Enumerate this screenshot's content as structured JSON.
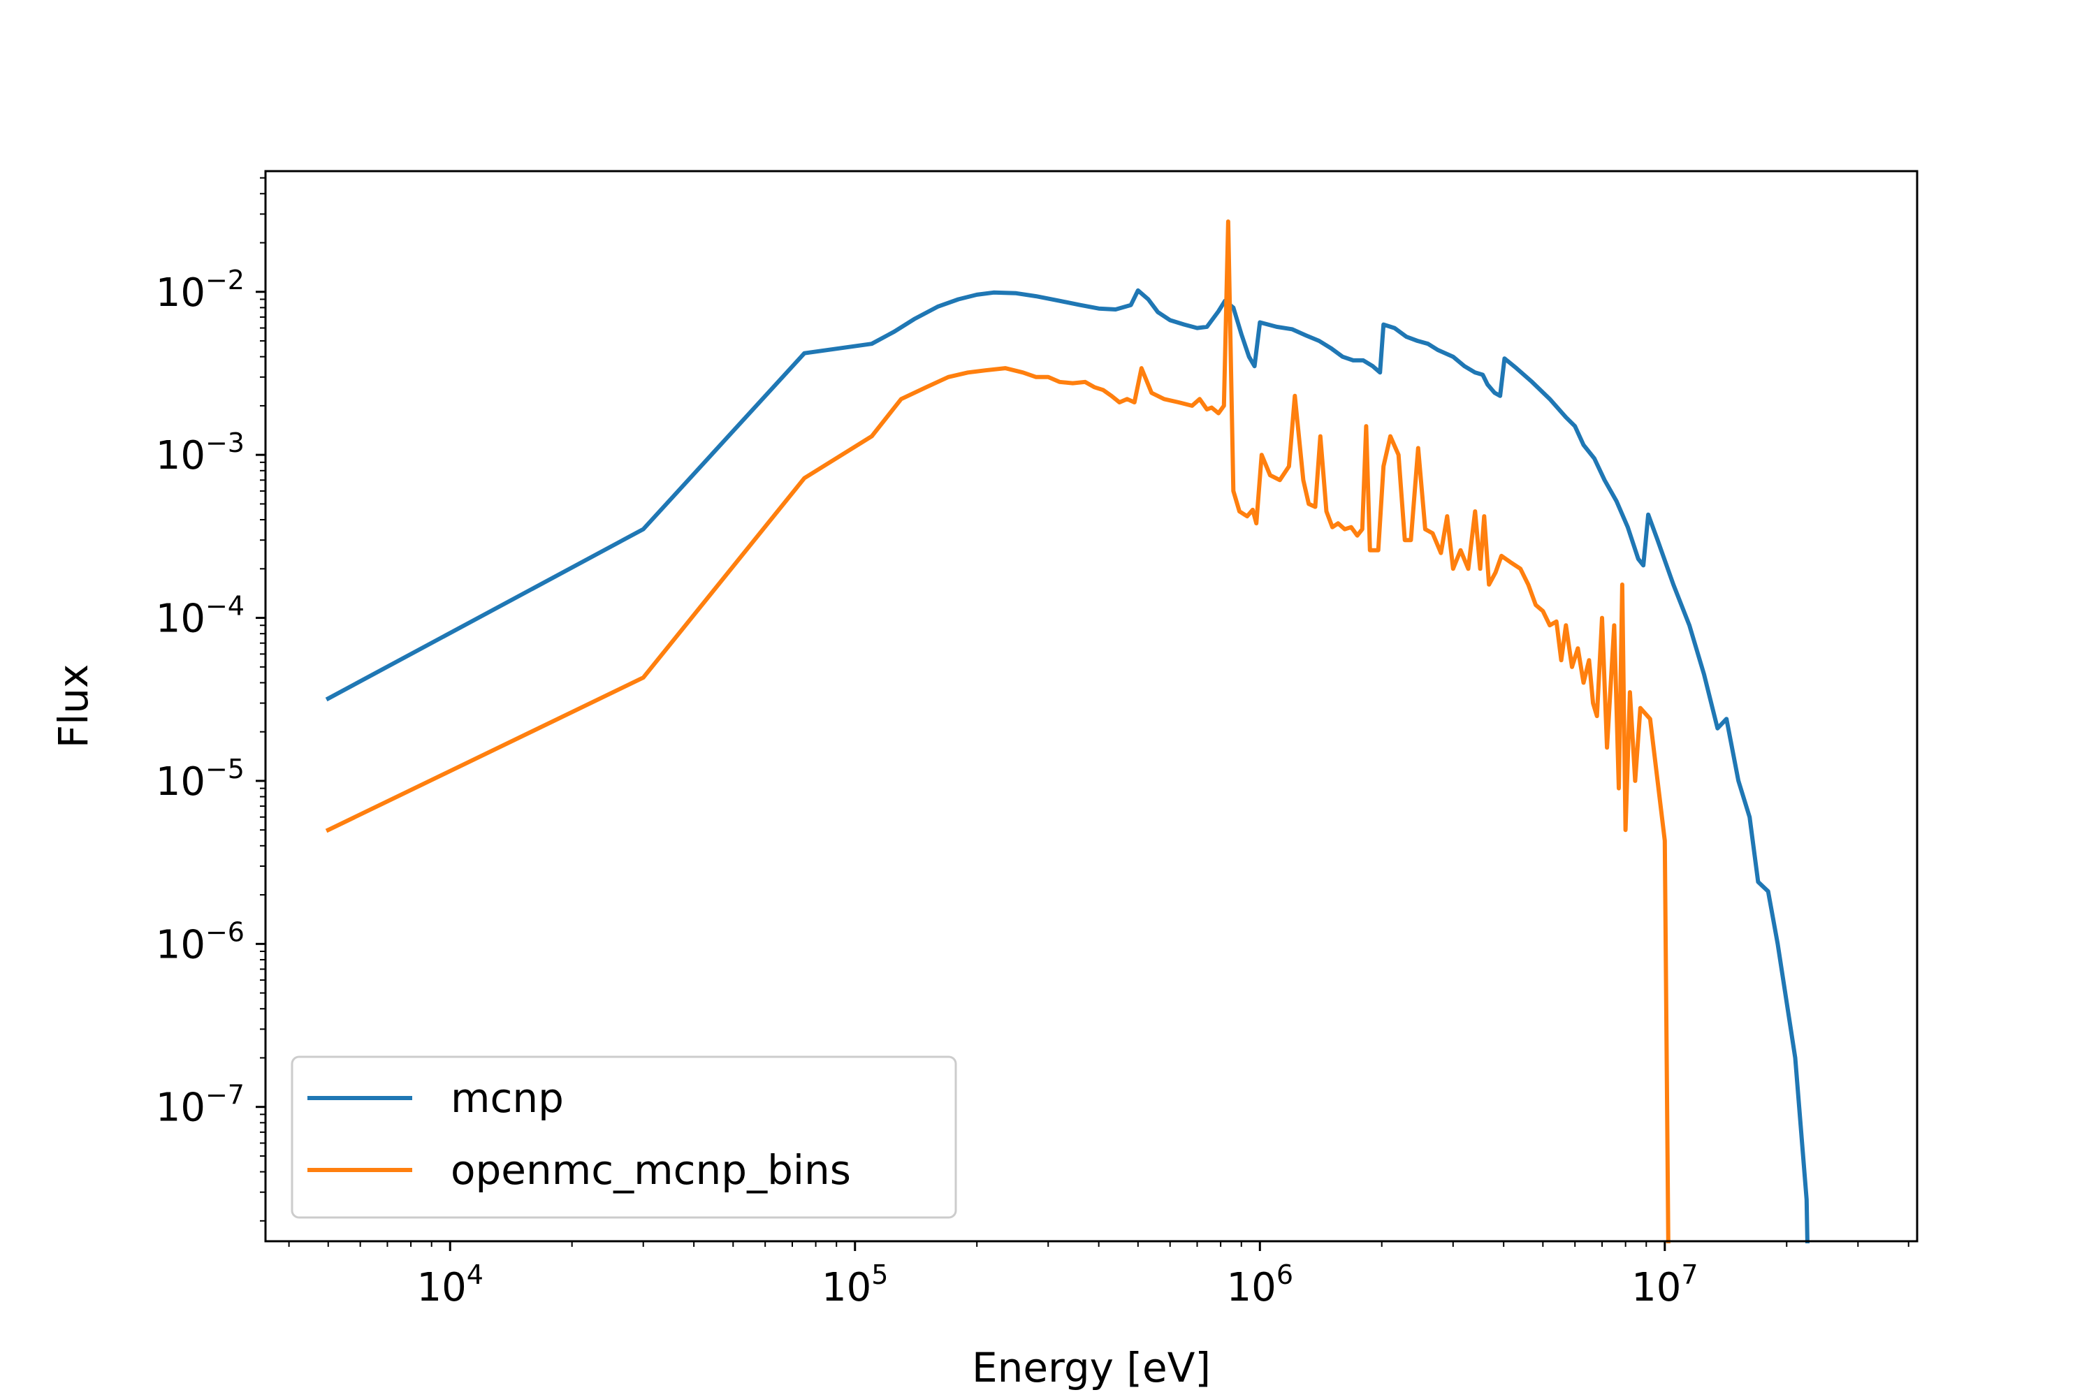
{
  "chart_data": {
    "type": "line",
    "xlabel": "Energy [eV]",
    "ylabel": "Flux",
    "xscale": "log",
    "yscale": "log",
    "xlim": [
      3500,
      42000000
    ],
    "ylim": [
      1.5e-08,
      0.055
    ],
    "grid": false,
    "legend_position": "lower-left",
    "x_ticks": [
      {
        "value": 10000,
        "base": "10",
        "exp": "4"
      },
      {
        "value": 100000,
        "base": "10",
        "exp": "5"
      },
      {
        "value": 1000000,
        "base": "10",
        "exp": "6"
      },
      {
        "value": 10000000,
        "base": "10",
        "exp": "7"
      }
    ],
    "y_ticks": [
      {
        "value": 1e-07,
        "base": "10",
        "exp": "−7"
      },
      {
        "value": 1e-06,
        "base": "10",
        "exp": "−6"
      },
      {
        "value": 1e-05,
        "base": "10",
        "exp": "−5"
      },
      {
        "value": 0.0001,
        "base": "10",
        "exp": "−4"
      },
      {
        "value": 0.001,
        "base": "10",
        "exp": "−3"
      },
      {
        "value": 0.01,
        "base": "10",
        "exp": "−2"
      }
    ],
    "series": [
      {
        "name": "mcnp",
        "color": "#1f77b4",
        "points": [
          [
            5000,
            3.2e-05
          ],
          [
            30000,
            0.00035
          ],
          [
            75000,
            0.0042
          ],
          [
            110000,
            0.0048
          ],
          [
            125000,
            0.0057
          ],
          [
            140000,
            0.0068
          ],
          [
            160000,
            0.0081
          ],
          [
            180000,
            0.009
          ],
          [
            200000,
            0.0096
          ],
          [
            220000,
            0.0099
          ],
          [
            250000,
            0.0098
          ],
          [
            280000,
            0.0094
          ],
          [
            320000,
            0.0088
          ],
          [
            360000,
            0.0083
          ],
          [
            400000,
            0.0079
          ],
          [
            440000,
            0.0078
          ],
          [
            480000,
            0.0083
          ],
          [
            500000,
            0.0102
          ],
          [
            530000,
            0.009
          ],
          [
            560000,
            0.0075
          ],
          [
            600000,
            0.0067
          ],
          [
            650000,
            0.0063
          ],
          [
            700000,
            0.006
          ],
          [
            740000,
            0.0061
          ],
          [
            790000,
            0.0076
          ],
          [
            820000,
            0.0088
          ],
          [
            860000,
            0.008
          ],
          [
            900000,
            0.0055
          ],
          [
            940000,
            0.004
          ],
          [
            970000,
            0.0035
          ],
          [
            1000000,
            0.0065
          ],
          [
            1100000,
            0.0061
          ],
          [
            1200000,
            0.0059
          ],
          [
            1300000,
            0.0054
          ],
          [
            1400000,
            0.005
          ],
          [
            1500000,
            0.0045
          ],
          [
            1600000,
            0.004
          ],
          [
            1700000,
            0.0038
          ],
          [
            1800000,
            0.0038
          ],
          [
            1900000,
            0.0035
          ],
          [
            1980000,
            0.0032
          ],
          [
            2020000,
            0.0063
          ],
          [
            2150000,
            0.006
          ],
          [
            2300000,
            0.0053
          ],
          [
            2450000,
            0.005
          ],
          [
            2600000,
            0.0048
          ],
          [
            2750000,
            0.0044
          ],
          [
            3000000,
            0.004
          ],
          [
            3200000,
            0.0035
          ],
          [
            3400000,
            0.0032
          ],
          [
            3550000,
            0.0031
          ],
          [
            3650000,
            0.0027
          ],
          [
            3800000,
            0.0024
          ],
          [
            3920000,
            0.0023
          ],
          [
            4020000,
            0.0039
          ],
          [
            4300000,
            0.0034
          ],
          [
            4700000,
            0.0028
          ],
          [
            5200000,
            0.0022
          ],
          [
            5700000,
            0.0017
          ],
          [
            6000000,
            0.0015
          ],
          [
            6300000,
            0.00115
          ],
          [
            6700000,
            0.00095
          ],
          [
            7100000,
            0.0007
          ],
          [
            7600000,
            0.00052
          ],
          [
            8100000,
            0.00036
          ],
          [
            8600000,
            0.00023
          ],
          [
            8850000,
            0.00021
          ],
          [
            9100000,
            0.00043
          ],
          [
            9600000,
            0.0003
          ],
          [
            10500000,
            0.00016
          ],
          [
            11500000,
            9e-05
          ],
          [
            12500000,
            4.5e-05
          ],
          [
            13500000,
            2.1e-05
          ],
          [
            14200000,
            2.4e-05
          ],
          [
            15200000,
            1e-05
          ],
          [
            16200000,
            6e-06
          ],
          [
            17000000,
            2.4e-06
          ],
          [
            18000000,
            2.1e-06
          ],
          [
            19000000,
            1e-06
          ],
          [
            21000000,
            2e-07
          ],
          [
            22400000,
            2.7e-08
          ],
          [
            22500000,
            1.5e-08
          ]
        ]
      },
      {
        "name": "openmc_mcnp_bins",
        "color": "#ff7f0e",
        "points": [
          [
            5000,
            5e-06
          ],
          [
            30000,
            4.3e-05
          ],
          [
            75000,
            0.00072
          ],
          [
            110000,
            0.0013
          ],
          [
            130000,
            0.0022
          ],
          [
            150000,
            0.0026
          ],
          [
            170000,
            0.003
          ],
          [
            190000,
            0.0032
          ],
          [
            210000,
            0.0033
          ],
          [
            235000,
            0.0034
          ],
          [
            260000,
            0.0032
          ],
          [
            280000,
            0.003
          ],
          [
            300000,
            0.003
          ],
          [
            320000,
            0.0028
          ],
          [
            345000,
            0.00275
          ],
          [
            370000,
            0.0028
          ],
          [
            390000,
            0.0026
          ],
          [
            410000,
            0.0025
          ],
          [
            430000,
            0.0023
          ],
          [
            450000,
            0.0021
          ],
          [
            470000,
            0.0022
          ],
          [
            490000,
            0.0021
          ],
          [
            510000,
            0.0034
          ],
          [
            540000,
            0.0024
          ],
          [
            580000,
            0.0022
          ],
          [
            630000,
            0.0021
          ],
          [
            680000,
            0.002
          ],
          [
            710000,
            0.0022
          ],
          [
            740000,
            0.0019
          ],
          [
            760000,
            0.00195
          ],
          [
            790000,
            0.0018
          ],
          [
            815000,
            0.002
          ],
          [
            835000,
            0.027
          ],
          [
            860000,
            0.0006
          ],
          [
            890000,
            0.00045
          ],
          [
            930000,
            0.00042
          ],
          [
            960000,
            0.00046
          ],
          [
            980000,
            0.00038
          ],
          [
            1010000,
            0.001
          ],
          [
            1060000,
            0.00075
          ],
          [
            1120000,
            0.0007
          ],
          [
            1180000,
            0.00085
          ],
          [
            1220000,
            0.0023
          ],
          [
            1280000,
            0.0007
          ],
          [
            1320000,
            0.0005
          ],
          [
            1370000,
            0.00048
          ],
          [
            1410000,
            0.0013
          ],
          [
            1460000,
            0.00045
          ],
          [
            1510000,
            0.00036
          ],
          [
            1560000,
            0.00038
          ],
          [
            1620000,
            0.00035
          ],
          [
            1680000,
            0.00036
          ],
          [
            1740000,
            0.00032
          ],
          [
            1790000,
            0.00035
          ],
          [
            1830000,
            0.0015
          ],
          [
            1870000,
            0.00026
          ],
          [
            1960000,
            0.00026
          ],
          [
            2020000,
            0.00085
          ],
          [
            2100000,
            0.0013
          ],
          [
            2200000,
            0.001
          ],
          [
            2280000,
            0.0003
          ],
          [
            2360000,
            0.0003
          ],
          [
            2460000,
            0.0011
          ],
          [
            2560000,
            0.00035
          ],
          [
            2670000,
            0.00033
          ],
          [
            2800000,
            0.00025
          ],
          [
            2900000,
            0.00042
          ],
          [
            3000000,
            0.0002
          ],
          [
            3130000,
            0.00026
          ],
          [
            3270000,
            0.0002
          ],
          [
            3400000,
            0.00045
          ],
          [
            3500000,
            0.0002
          ],
          [
            3580000,
            0.00042
          ],
          [
            3680000,
            0.00016
          ],
          [
            3820000,
            0.00019
          ],
          [
            3950000,
            0.00024
          ],
          [
            4150000,
            0.00022
          ],
          [
            4400000,
            0.0002
          ],
          [
            4600000,
            0.00016
          ],
          [
            4800000,
            0.00012
          ],
          [
            5000000,
            0.00011
          ],
          [
            5200000,
            9e-05
          ],
          [
            5400000,
            9.5e-05
          ],
          [
            5550000,
            5.5e-05
          ],
          [
            5700000,
            9e-05
          ],
          [
            5900000,
            5e-05
          ],
          [
            6100000,
            6.5e-05
          ],
          [
            6300000,
            4e-05
          ],
          [
            6500000,
            5.5e-05
          ],
          [
            6650000,
            3e-05
          ],
          [
            6800000,
            2.5e-05
          ],
          [
            7000000,
            0.0001
          ],
          [
            7200000,
            1.6e-05
          ],
          [
            7500000,
            9e-05
          ],
          [
            7700000,
            9e-06
          ],
          [
            7850000,
            0.00016
          ],
          [
            8000000,
            5e-06
          ],
          [
            8200000,
            3.5e-05
          ],
          [
            8450000,
            1e-05
          ],
          [
            8700000,
            2.8e-05
          ],
          [
            9200000,
            2.4e-05
          ],
          [
            10000000,
            4.3e-06
          ],
          [
            10200000,
            1.5e-08
          ]
        ]
      }
    ]
  }
}
